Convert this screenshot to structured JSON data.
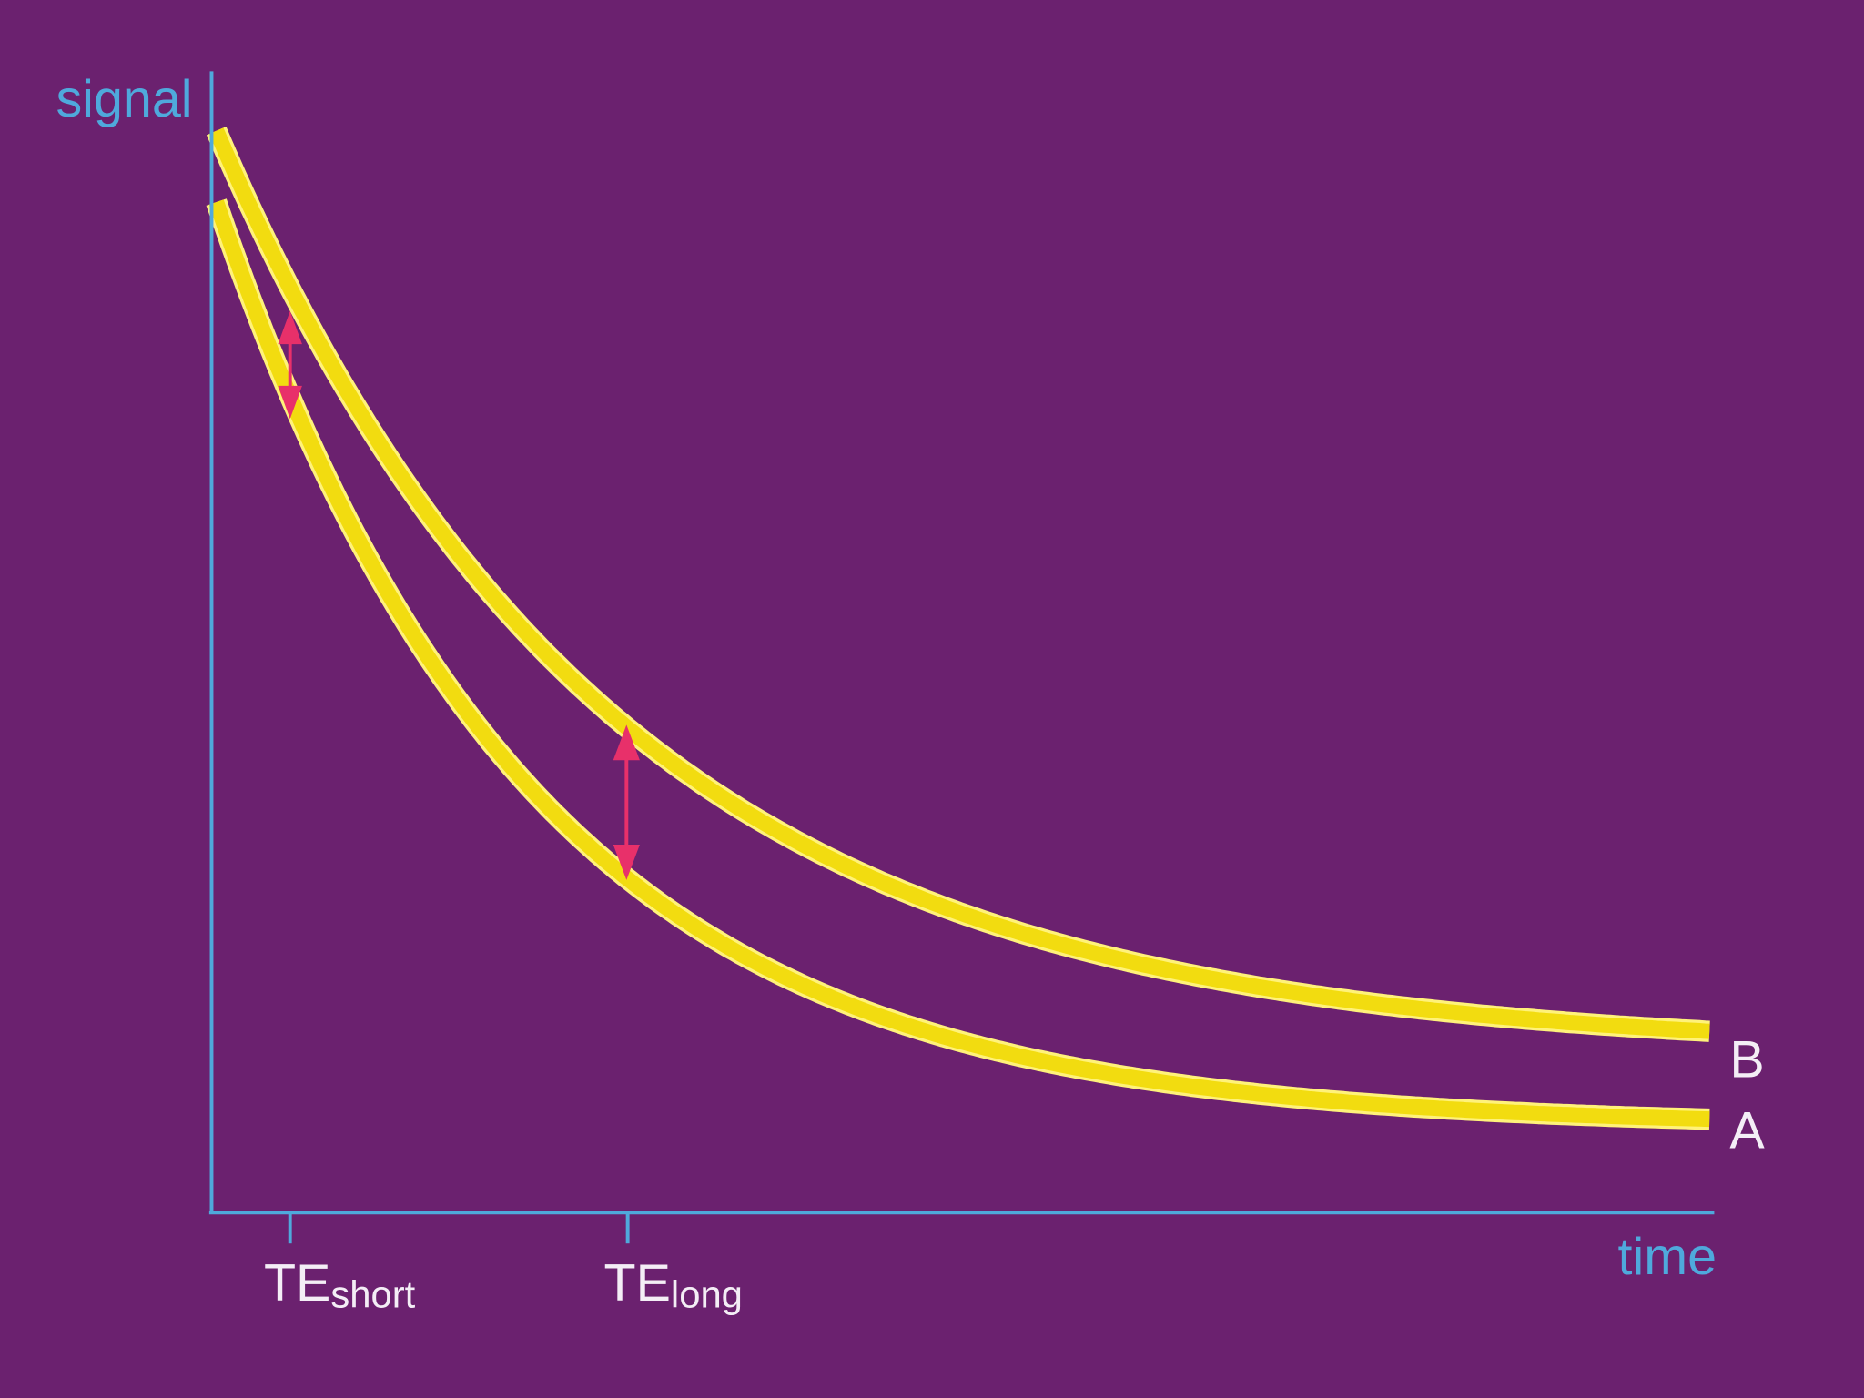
{
  "axes": {
    "y_label": "signal",
    "x_label": "time"
  },
  "markers": [
    {
      "label": "TE",
      "subscript": "short"
    },
    {
      "label": "TE",
      "subscript": "long"
    }
  ],
  "curves": [
    {
      "label": "B"
    },
    {
      "label": "A"
    }
  ]
}
